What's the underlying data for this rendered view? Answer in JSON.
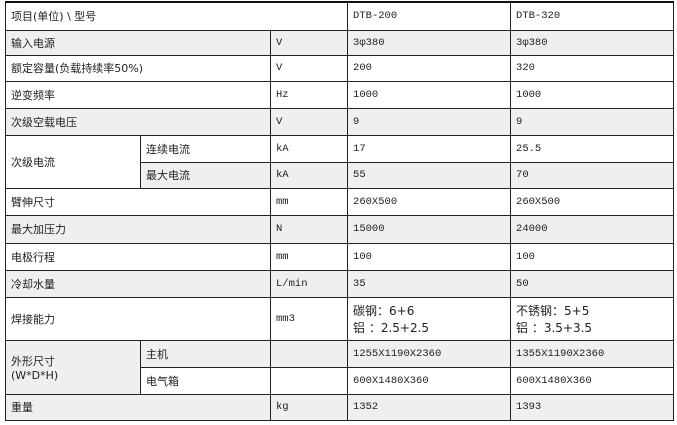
{
  "header": {
    "label": "项目(单位) \\ 型号",
    "models": [
      "DTB-200",
      "DTB-320"
    ]
  },
  "rows": [
    {
      "name": "输入电源",
      "unit": "V",
      "v1": "3φ380",
      "v2": "3φ380",
      "shaded": true
    },
    {
      "name": "额定容量(负载持续率50%)",
      "unit": "V",
      "v1": "200",
      "v2": "320",
      "shaded": false
    },
    {
      "name": "逆变频率",
      "unit": "Hz",
      "v1": "1000",
      "v2": "1000",
      "shaded": false
    },
    {
      "name": "次级空载电压",
      "unit": "V",
      "v1": "9",
      "v2": "9",
      "shaded": true
    },
    {
      "name": "次级电流",
      "sub": [
        {
          "name": "连续电流",
          "unit": "kA",
          "v1": "17",
          "v2": "25.5",
          "shaded": false
        },
        {
          "name": "最大电流",
          "unit": "kA",
          "v1": "55",
          "v2": "70",
          "shaded": true
        }
      ]
    },
    {
      "name": "臂伸尺寸",
      "unit": "mm",
      "v1": "260X500",
      "v2": "260X500",
      "shaded": false
    },
    {
      "name": "最大加压力",
      "unit": "N",
      "v1": "15000",
      "v2": "24000",
      "shaded": true
    },
    {
      "name": "电极行程",
      "unit": "mm",
      "v1": "100",
      "v2": "100",
      "shaded": false
    },
    {
      "name": "冷却水量",
      "unit": "L/min",
      "v1": "35",
      "v2": "50",
      "shaded": true
    },
    {
      "name": "焊接能力",
      "unit": "mm3",
      "v1": [
        "碳钢：6+6",
        "铝 ：2.5+2.5"
      ],
      "v2": [
        "不锈钢：5+5",
        "铝 ：3.5+3.5"
      ],
      "shaded": false
    },
    {
      "name": "外形尺寸\n(W*D*H)",
      "sub": [
        {
          "name": "主机",
          "unit": "",
          "v1": "1255X1190X2360",
          "v2": "1355X1190X2360",
          "shaded": true
        },
        {
          "name": "电气箱",
          "unit": "",
          "v1": "600X1480X360",
          "v2": "600X1480X360",
          "shaded": false
        }
      ]
    },
    {
      "name": "重量",
      "unit": "kg",
      "v1": "1352",
      "v2": "1393",
      "shaded": true
    }
  ]
}
